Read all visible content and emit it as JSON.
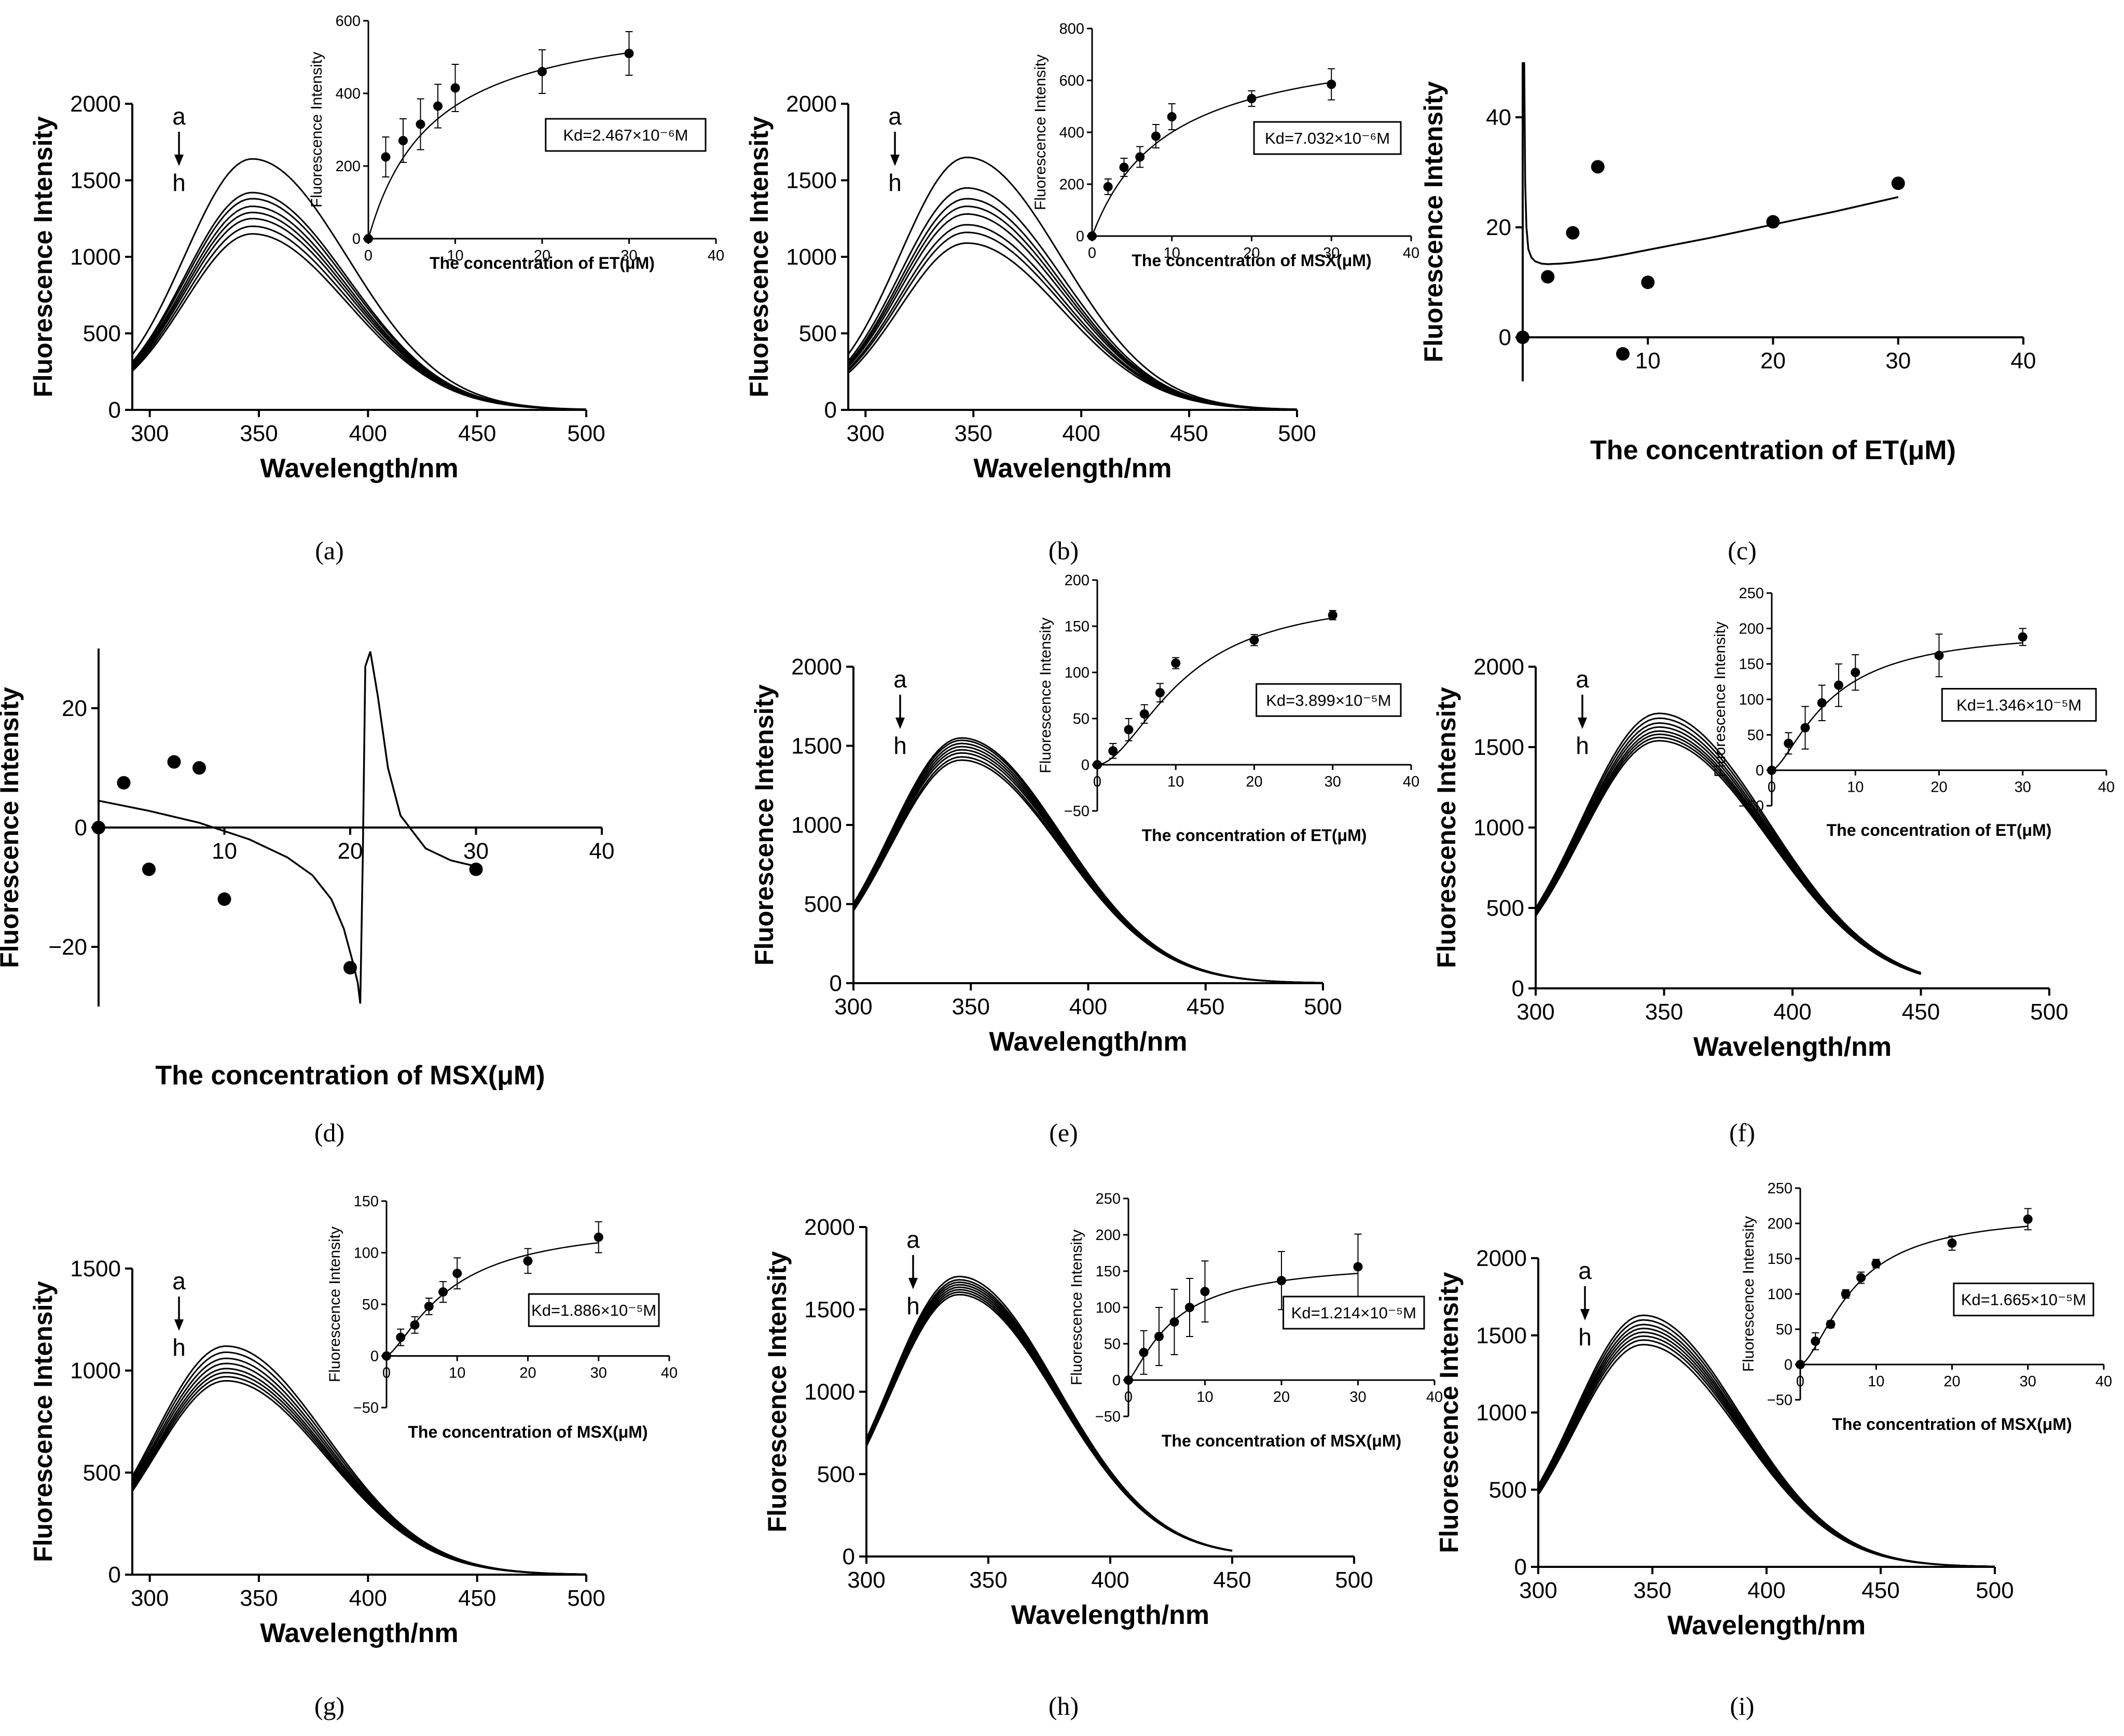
{
  "chart_data": [
    {
      "panel": "a",
      "panel_label": "(a)",
      "type": "line",
      "xlabel": "Wavelength/nm",
      "ylabel": "Fluorescence Intensity",
      "xlim": [
        292,
        500
      ],
      "ylim": [
        0,
        2000
      ],
      "xticks": [
        300,
        350,
        400,
        450,
        500
      ],
      "yticks": [
        0,
        500,
        1000,
        1500,
        2000
      ],
      "series_peak": 347,
      "series_width": 38,
      "series_tail": 0.004,
      "series_peaks": [
        1640,
        1420,
        1380,
        1330,
        1290,
        1250,
        1200,
        1150
      ],
      "series_x_end": 500,
      "arrow_top": "a",
      "arrow_bottom": "h",
      "inset": {
        "xlabel": "The concentration of ET(μM)",
        "ylabel": "Fluorescence Intensity",
        "xlim": [
          0,
          40
        ],
        "ylim": [
          0,
          600
        ],
        "xticks": [
          0,
          10,
          20,
          30,
          40
        ],
        "yticks": [
          0,
          200,
          400,
          600
        ],
        "x": [
          0,
          2,
          4,
          6,
          8,
          10,
          20,
          30
        ],
        "y": [
          0,
          225,
          270,
          315,
          365,
          415,
          460,
          510
        ],
        "err": [
          0,
          55,
          60,
          70,
          60,
          65,
          60,
          60
        ],
        "fit": "hyperbola",
        "fit_params": [
          640,
          7.5
        ],
        "kd_text": "Kd=2.467×10⁻⁶M"
      }
    },
    {
      "panel": "b",
      "panel_label": "(b)",
      "type": "line",
      "xlabel": "Wavelength/nm",
      "ylabel": "Fluorescence Intensity",
      "xlim": [
        292,
        500
      ],
      "ylim": [
        0,
        2000
      ],
      "xticks": [
        300,
        350,
        400,
        450,
        500
      ],
      "yticks": [
        0,
        500,
        1000,
        1500,
        2000
      ],
      "series_peak": 347,
      "series_width": 38,
      "series_tail": 0.004,
      "series_peaks": [
        1650,
        1450,
        1380,
        1330,
        1280,
        1210,
        1160,
        1090
      ],
      "series_x_end": 500,
      "arrow_top": "a",
      "arrow_bottom": "h",
      "inset": {
        "xlabel": "The concentration of MSX(μM)",
        "ylabel": "Fluorescence Intensity",
        "xlim": [
          0,
          40
        ],
        "ylim": [
          0,
          800
        ],
        "xticks": [
          0,
          10,
          20,
          30,
          40
        ],
        "yticks": [
          0,
          200,
          400,
          600,
          800
        ],
        "x": [
          0,
          2,
          4,
          6,
          8,
          10,
          20,
          30
        ],
        "y": [
          0,
          190,
          265,
          305,
          385,
          460,
          530,
          585
        ],
        "err": [
          0,
          30,
          35,
          40,
          45,
          50,
          30,
          60
        ],
        "fit": "hyperbola",
        "fit_params": [
          780,
          9.5
        ],
        "kd_text": "Kd=7.032×10⁻⁶M"
      }
    },
    {
      "panel": "c",
      "panel_label": "(c)",
      "type": "scatter",
      "xlabel": "The concentration of ET(μM)",
      "ylabel": "Fluorescence Intensity",
      "xlim": [
        0,
        40
      ],
      "ylim": [
        -8,
        50
      ],
      "xticks": [
        10,
        20,
        30,
        40
      ],
      "yticks": [
        0,
        20,
        40
      ],
      "x": [
        0,
        2,
        4,
        6,
        8,
        10,
        20,
        30
      ],
      "y": [
        0,
        11,
        19,
        31,
        -3,
        10,
        21,
        28
      ],
      "fit_x": [
        0.12,
        0.16,
        0.2,
        0.3,
        0.45,
        0.7,
        1,
        1.5,
        2,
        3,
        4,
        6,
        8,
        10,
        15,
        20,
        25,
        30
      ],
      "fit_y": [
        50,
        38,
        28,
        20,
        16,
        14.5,
        13.8,
        13.4,
        13.3,
        13.4,
        13.6,
        14.2,
        15,
        15.9,
        18.1,
        20.5,
        22.9,
        25.5
      ]
    },
    {
      "panel": "d",
      "panel_label": "(d)",
      "type": "scatter",
      "xlabel": "The concentration of MSX(μM)",
      "ylabel": "Fluorescence Intensity",
      "xlim": [
        0,
        40
      ],
      "ylim": [
        -30,
        30
      ],
      "xticks": [
        10,
        20,
        30,
        40
      ],
      "yticks": [
        -20,
        0,
        20
      ],
      "x": [
        0,
        2,
        4,
        6,
        8,
        10,
        20,
        30
      ],
      "y": [
        0,
        7.5,
        -7,
        11,
        10,
        -12,
        -23.5,
        -7
      ],
      "fit_x": [
        0,
        4,
        8,
        12,
        15,
        17,
        18.5,
        19.5,
        20.2,
        20.6,
        20.8,
        21,
        21.2,
        21.6,
        22.2,
        23,
        24,
        26,
        28,
        30
      ],
      "fit_y": [
        4.5,
        2.8,
        0.8,
        -2,
        -5,
        -8,
        -12,
        -17,
        -22.5,
        -26,
        -29.5,
        -5,
        27,
        29.5,
        22,
        10,
        2,
        -3.5,
        -5.5,
        -6.5
      ]
    },
    {
      "panel": "e",
      "panel_label": "(e)",
      "type": "line",
      "xlabel": "Wavelength/nm",
      "ylabel": "Fluorescence Intensity",
      "xlim": [
        300,
        500
      ],
      "ylim": [
        0,
        2000
      ],
      "xticks": [
        300,
        350,
        400,
        450,
        500
      ],
      "yticks": [
        0,
        500,
        1000,
        1500,
        2000
      ],
      "series_peak": 346,
      "series_width": 37,
      "series_tail": 0.004,
      "series_peaks": [
        1550,
        1535,
        1515,
        1495,
        1475,
        1455,
        1430,
        1410
      ],
      "series_x_end": 500,
      "arrow_top": "a",
      "arrow_bottom": "h",
      "inset": {
        "xlabel": "The concentration of ET(μM)",
        "ylabel": "Fluorescence Intensity",
        "xlim": [
          0,
          40
        ],
        "ylim": [
          -50,
          200
        ],
        "xticks": [
          0,
          10,
          20,
          30,
          40
        ],
        "yticks": [
          -50,
          0,
          50,
          100,
          150,
          200
        ],
        "x": [
          0,
          2,
          4,
          6,
          8,
          10,
          20,
          30
        ],
        "y": [
          0,
          15,
          38,
          55,
          78,
          110,
          135,
          162
        ],
        "err": [
          0,
          8,
          12,
          10,
          10,
          6,
          6,
          5
        ],
        "fit": "hill",
        "fit_params": [
          185,
          11,
          1.8
        ],
        "kd_text": "Kd=3.899×10⁻⁵M"
      }
    },
    {
      "panel": "f",
      "panel_label": "(f)",
      "type": "line",
      "xlabel": "Wavelength/nm",
      "ylabel": "Fluorescence Intensity",
      "xlim": [
        300,
        500
      ],
      "ylim": [
        0,
        2000
      ],
      "xticks": [
        300,
        350,
        400,
        450,
        500
      ],
      "yticks": [
        0,
        500,
        1000,
        1500,
        2000
      ],
      "series_peak": 348,
      "series_width": 37,
      "series_tail": 0.003,
      "series_peaks": [
        1710,
        1680,
        1650,
        1625,
        1600,
        1580,
        1560,
        1540
      ],
      "series_x_end": 450,
      "arrow_top": "a",
      "arrow_bottom": "h",
      "inset": {
        "xlabel": "The concentration of ET(μM)",
        "ylabel": "Fluorescence Intensity",
        "xlim": [
          0,
          40
        ],
        "ylim": [
          -50,
          250
        ],
        "xticks": [
          0,
          10,
          20,
          30,
          40
        ],
        "yticks": [
          -50,
          0,
          50,
          100,
          150,
          200,
          250
        ],
        "x": [
          0,
          2,
          4,
          6,
          8,
          10,
          20,
          30
        ],
        "y": [
          0,
          38,
          60,
          95,
          120,
          138,
          162,
          188
        ],
        "err": [
          0,
          15,
          30,
          25,
          30,
          25,
          30,
          12
        ],
        "fit": "hill",
        "fit_params": [
          200,
          7,
          1.5
        ],
        "kd_text": "Kd=1.346×10⁻⁵M"
      }
    },
    {
      "panel": "g",
      "panel_label": "(g)",
      "type": "line",
      "xlabel": "Wavelength/nm",
      "ylabel": "Fluorescence Intensity",
      "xlim": [
        292,
        500
      ],
      "ylim": [
        0,
        1500
      ],
      "xticks": [
        300,
        350,
        400,
        450,
        500
      ],
      "yticks": [
        0,
        500,
        1000,
        1500
      ],
      "series_peak": 335,
      "series_width": 40,
      "series_tail": 0.004,
      "series_peaks": [
        1120,
        1090,
        1060,
        1035,
        1010,
        990,
        970,
        950
      ],
      "series_x_end": 500,
      "arrow_top": "a",
      "arrow_bottom": "h",
      "inset": {
        "xlabel": "The concentration of MSX(μM)",
        "ylabel": "Fluorescence Intensity",
        "xlim": [
          0,
          40
        ],
        "ylim": [
          -50,
          150
        ],
        "xticks": [
          0,
          10,
          20,
          30,
          40
        ],
        "yticks": [
          -50,
          0,
          50,
          100,
          150
        ],
        "x": [
          0,
          2,
          4,
          6,
          8,
          10,
          20,
          30
        ],
        "y": [
          0,
          18,
          30,
          48,
          62,
          80,
          92,
          115
        ],
        "err": [
          0,
          8,
          8,
          8,
          10,
          15,
          12,
          15
        ],
        "fit": "hill",
        "fit_params": [
          130,
          9,
          1.4
        ],
        "kd_text": "Kd=1.886×10⁻⁵M"
      }
    },
    {
      "panel": "h",
      "panel_label": "(h)",
      "type": "line",
      "xlabel": "Wavelength/nm",
      "ylabel": "Fluorescence Intensity",
      "xlim": [
        300,
        500
      ],
      "ylim": [
        0,
        2000
      ],
      "xticks": [
        300,
        350,
        400,
        450,
        500
      ],
      "yticks": [
        0,
        500,
        1000,
        1500,
        2000
      ],
      "series_peak": 338,
      "series_width": 35,
      "series_tail": 0.003,
      "series_peaks": [
        1700,
        1680,
        1665,
        1650,
        1635,
        1620,
        1605,
        1590
      ],
      "series_x_end": 450,
      "arrow_top": "a",
      "arrow_bottom": "h",
      "inset": {
        "xlabel": "The concentration of MSX(μM)",
        "ylabel": "Fluorescence Intensity",
        "xlim": [
          0,
          40
        ],
        "ylim": [
          -50,
          250
        ],
        "xticks": [
          0,
          10,
          20,
          30,
          40
        ],
        "yticks": [
          -50,
          0,
          50,
          100,
          150,
          200,
          250
        ],
        "x": [
          0,
          2,
          4,
          6,
          8,
          10,
          20,
          30
        ],
        "y": [
          0,
          38,
          60,
          80,
          100,
          122,
          137,
          156
        ],
        "err": [
          0,
          30,
          40,
          45,
          40,
          42,
          40,
          45
        ],
        "fit": "hill",
        "fit_params": [
          165,
          6,
          1.3
        ],
        "kd_text": "Kd=1.214×10⁻⁵M"
      }
    },
    {
      "panel": "i",
      "panel_label": "(i)",
      "type": "line",
      "xlabel": "Wavelength/nm",
      "ylabel": "Fluorescence Intensity",
      "xlim": [
        300,
        500
      ],
      "ylim": [
        0,
        2000
      ],
      "xticks": [
        300,
        350,
        400,
        450,
        500
      ],
      "yticks": [
        0,
        500,
        1000,
        1500,
        2000
      ],
      "series_peak": 346,
      "series_width": 37,
      "series_tail": 0.004,
      "series_peaks": [
        1630,
        1600,
        1570,
        1545,
        1520,
        1495,
        1470,
        1440
      ],
      "series_x_end": 500,
      "arrow_top": "a",
      "arrow_bottom": "h",
      "inset": {
        "xlabel": "The concentration of MSX(μM)",
        "ylabel": "Fluorescence Intensity",
        "xlim": [
          0,
          40
        ],
        "ylim": [
          -50,
          250
        ],
        "xticks": [
          0,
          10,
          20,
          30,
          40
        ],
        "yticks": [
          -50,
          0,
          50,
          100,
          150,
          200,
          250
        ],
        "x": [
          0,
          2,
          4,
          6,
          8,
          10,
          20,
          30
        ],
        "y": [
          0,
          33,
          57,
          100,
          123,
          143,
          172,
          206
        ],
        "err": [
          0,
          12,
          5,
          6,
          8,
          6,
          10,
          15
        ],
        "fit": "hill",
        "fit_params": [
          215,
          7,
          1.6
        ],
        "kd_text": "Kd=1.665×10⁻⁵M"
      }
    }
  ]
}
